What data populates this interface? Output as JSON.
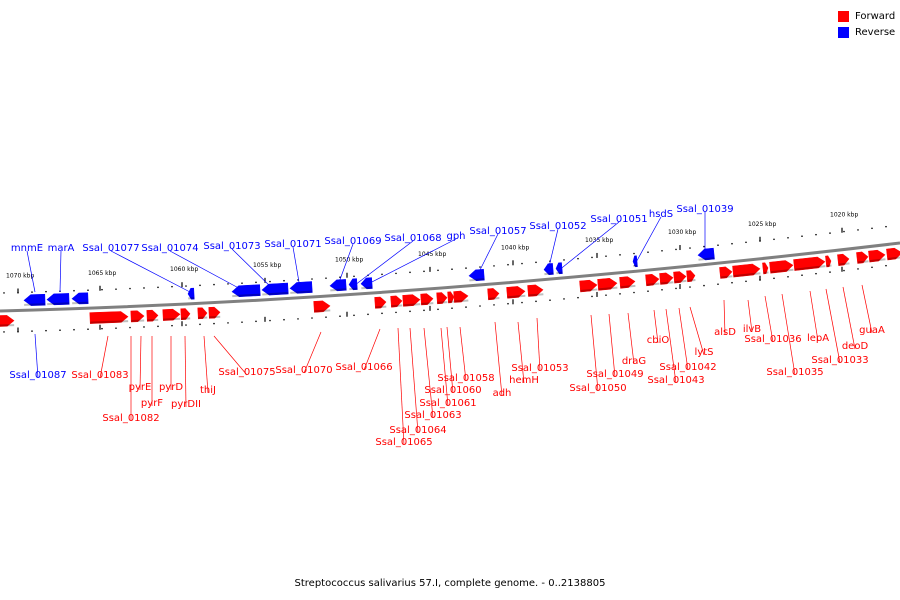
{
  "legend": {
    "forward": {
      "label": "Forward",
      "color": "#ff0000"
    },
    "reverse": {
      "label": "Reverse",
      "color": "#0000ff"
    }
  },
  "caption": "Streptococcus salivarius 57.I, complete genome. - 0..2138805",
  "colors": {
    "forward": "#ff0000",
    "reverse": "#0000ff",
    "backbone": "#808080"
  },
  "ticks": [
    "1070 kbp",
    "1065 kbp",
    "1060 kbp",
    "1055 kbp",
    "1050 kbp",
    "1045 kbp",
    "1040 kbp",
    "1035 kbp",
    "1030 kbp",
    "1025 kbp",
    "1020 kbp"
  ],
  "reverse_genes": [
    "mnmE",
    "marA",
    "Ssal_01077",
    "Ssal_01074",
    "Ssal_01073",
    "Ssal_01071",
    "Ssal_01069",
    "Ssal_01068",
    "gph",
    "Ssal_01057",
    "Ssal_01052",
    "Ssal_01051",
    "hsdS",
    "Ssal_01039",
    "Ssal_01087"
  ],
  "forward_genes": [
    "Ssal_01083",
    "Ssal_01082",
    "pyrE",
    "pyrF",
    "pyrD",
    "pyrDII",
    "thiJ",
    "Ssal_01075",
    "Ssal_01070",
    "Ssal_01066",
    "Ssal_01065",
    "Ssal_01064",
    "Ssal_01063",
    "Ssal_01061",
    "Ssal_01060",
    "Ssal_01058",
    "adh",
    "hemH",
    "Ssal_01053",
    "Ssal_01050",
    "Ssal_01049",
    "draG",
    "cbiO",
    "Ssal_01043",
    "Ssal_01042",
    "lytS",
    "alsD",
    "ilvB",
    "Ssal_01036",
    "Ssal_01035",
    "lepA",
    "Ssal_01033",
    "deoD",
    "guaA"
  ]
}
